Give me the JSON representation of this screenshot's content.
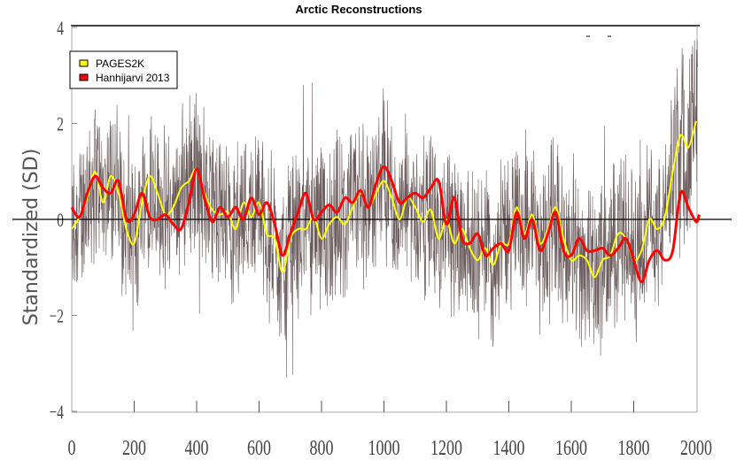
{
  "chart_data": {
    "type": "line",
    "title": "Arctic Reconstructions",
    "xlabel": "",
    "ylabel": "Standardized (SD)",
    "xlim": [
      0,
      2010
    ],
    "ylim": [
      -4,
      4
    ],
    "xticks": [
      0,
      200,
      400,
      600,
      800,
      1000,
      1200,
      1400,
      1600,
      1800,
      2000
    ],
    "xtick_labels": [
      "0",
      "200",
      "400",
      "600",
      "800",
      "1000",
      "1200",
      "1400",
      "1600",
      "1800",
      "2000"
    ],
    "yticks": [
      -4,
      -2,
      0,
      2,
      4
    ],
    "ytick_labels": [
      "-4",
      "-2",
      "0",
      "2",
      "4"
    ],
    "zero_line": 0,
    "grid": false,
    "legend_position": "top-left",
    "legend": [
      "PAGES2K",
      "Hanhijarvi 2013"
    ],
    "colors": {
      "PAGES2K": "#ffff00",
      "Hanhijarvi 2013": "#ff0000",
      "annual": "#3a2426"
    },
    "series": [
      {
        "name": "PAGES2K",
        "x": [
          0,
          25,
          50,
          75,
          100,
          125,
          150,
          175,
          200,
          225,
          250,
          275,
          300,
          325,
          350,
          375,
          400,
          425,
          450,
          475,
          500,
          525,
          550,
          575,
          600,
          625,
          650,
          675,
          700,
          725,
          750,
          775,
          800,
          825,
          850,
          875,
          900,
          925,
          950,
          975,
          1000,
          1025,
          1050,
          1075,
          1100,
          1125,
          1150,
          1175,
          1200,
          1225,
          1250,
          1275,
          1300,
          1325,
          1350,
          1375,
          1400,
          1425,
          1450,
          1475,
          1500,
          1525,
          1550,
          1575,
          1600,
          1625,
          1650,
          1675,
          1700,
          1725,
          1750,
          1775,
          1800,
          1825,
          1850,
          1875,
          1900,
          1925,
          1950,
          1975,
          2000
        ],
        "values": [
          -0.2,
          0.05,
          0.45,
          1.0,
          0.35,
          0.9,
          0.55,
          -0.2,
          -0.5,
          0.35,
          0.9,
          0.55,
          0.1,
          0.25,
          0.65,
          0.8,
          1.05,
          0.55,
          0.2,
          0.1,
          0.15,
          -0.2,
          0.35,
          0.05,
          0.35,
          -0.3,
          -0.4,
          -1.1,
          -0.4,
          -0.2,
          -0.2,
          0.05,
          -0.4,
          -0.1,
          0.05,
          -0.1,
          0.25,
          0.55,
          0.25,
          0.55,
          0.8,
          0.45,
          0.0,
          0.45,
          0.25,
          -0.05,
          0.2,
          -0.4,
          0.0,
          -0.5,
          -0.2,
          -0.6,
          -0.85,
          -0.6,
          -0.95,
          -0.5,
          -0.5,
          0.25,
          -0.3,
          0.1,
          -0.5,
          -0.2,
          0.25,
          -0.4,
          -0.85,
          -0.75,
          -0.85,
          -1.2,
          -0.85,
          -0.75,
          -0.3,
          -0.4,
          -0.85,
          -0.65,
          0.0,
          -0.2,
          0.05,
          1.0,
          1.75,
          1.5,
          2.05
        ]
      },
      {
        "name": "Hanhijarvi 2013",
        "x": [
          0,
          25,
          50,
          75,
          100,
          125,
          150,
          175,
          200,
          225,
          250,
          275,
          300,
          325,
          350,
          375,
          400,
          425,
          450,
          475,
          500,
          525,
          550,
          575,
          600,
          625,
          650,
          675,
          700,
          725,
          750,
          775,
          800,
          825,
          850,
          875,
          900,
          925,
          950,
          975,
          1000,
          1025,
          1050,
          1075,
          1100,
          1125,
          1150,
          1175,
          1200,
          1225,
          1250,
          1275,
          1300,
          1325,
          1350,
          1375,
          1400,
          1425,
          1450,
          1475,
          1500,
          1525,
          1550,
          1575,
          1600,
          1625,
          1650,
          1675,
          1700,
          1725,
          1750,
          1775,
          1800,
          1825,
          1850,
          1875,
          1900,
          1925,
          1950,
          1975,
          2000,
          2010
        ],
        "values": [
          0.25,
          0.05,
          0.55,
          0.9,
          0.65,
          0.55,
          0.8,
          0.0,
          0.1,
          0.55,
          0.05,
          0.0,
          0.1,
          -0.1,
          -0.2,
          0.35,
          1.05,
          0.45,
          -0.05,
          0.25,
          0.05,
          0.25,
          0.0,
          0.45,
          0.1,
          0.35,
          -0.1,
          -0.75,
          -0.3,
          0.15,
          0.55,
          0.0,
          0.15,
          0.3,
          0.15,
          0.45,
          0.35,
          0.6,
          0.25,
          0.75,
          1.1,
          0.8,
          0.35,
          0.45,
          0.55,
          0.45,
          0.65,
          0.8,
          -0.1,
          0.45,
          -0.4,
          -0.5,
          -0.3,
          -0.75,
          -0.6,
          -0.5,
          -0.65,
          0.15,
          -0.4,
          0.0,
          -0.65,
          -0.3,
          0.15,
          -0.65,
          -0.75,
          -0.4,
          -0.65,
          -0.65,
          -0.6,
          -0.75,
          -0.6,
          -0.4,
          -0.85,
          -1.3,
          -0.85,
          -0.65,
          -0.85,
          -0.65,
          0.55,
          0.25,
          -0.05,
          0.1
        ]
      }
    ]
  }
}
